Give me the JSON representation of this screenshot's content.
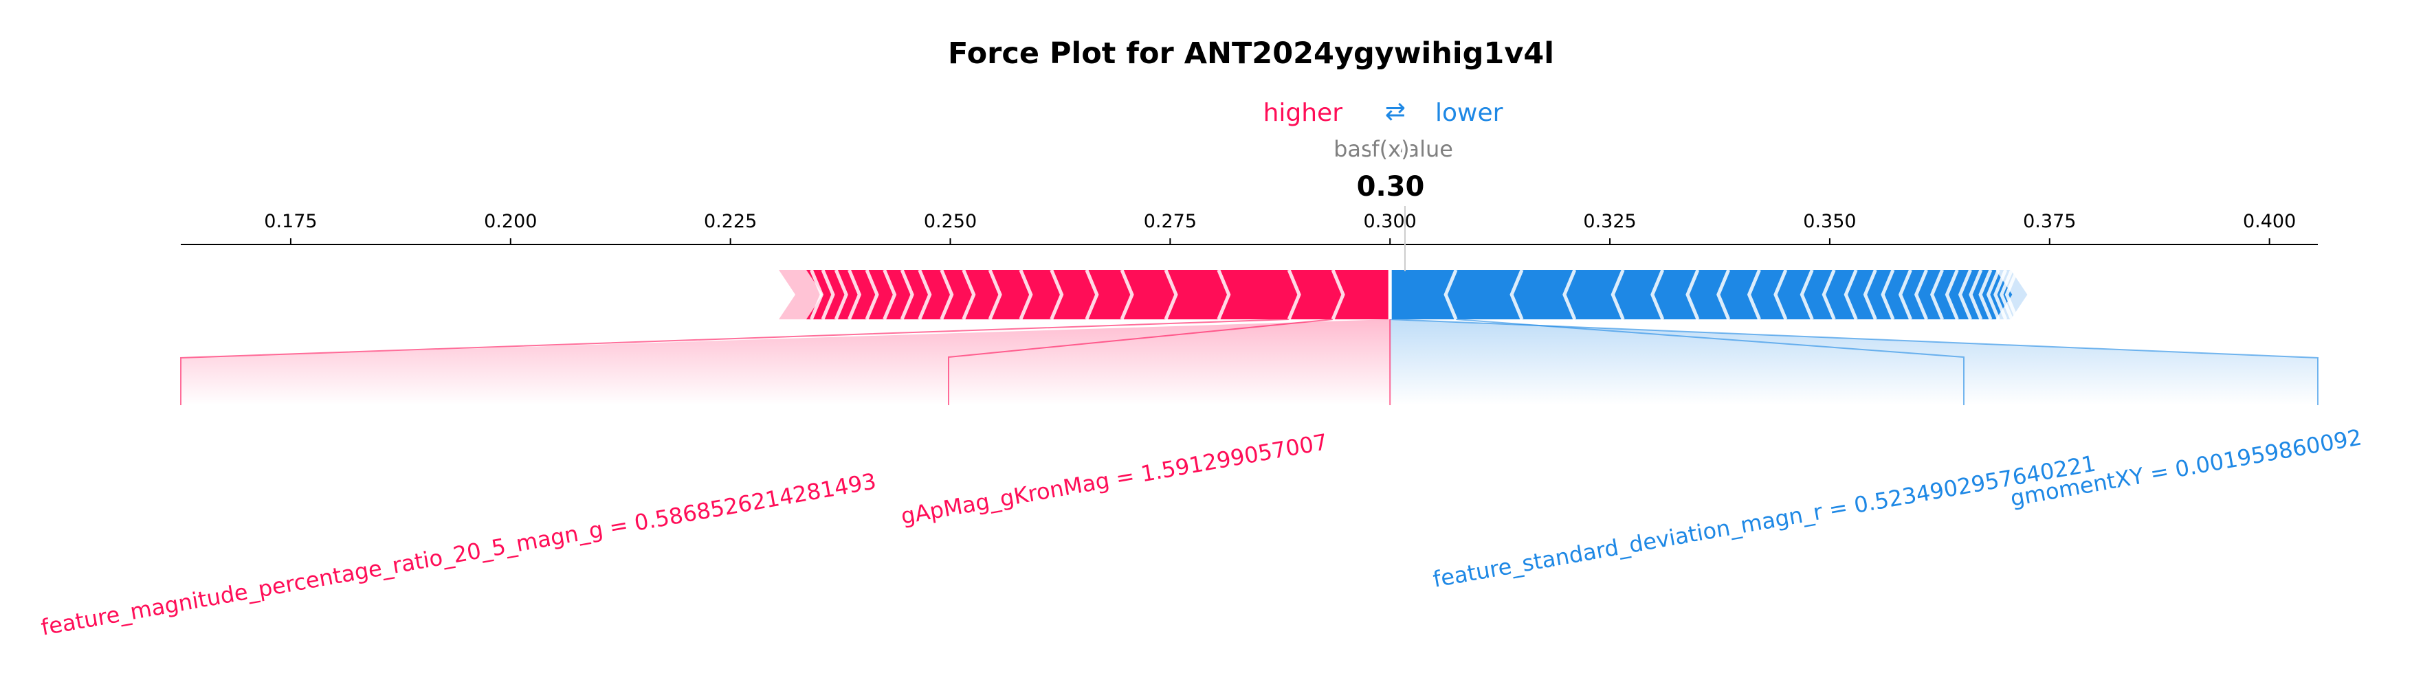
{
  "chart_data": {
    "type": "force",
    "title": "Force Plot for ANT2024ygywihig1v4l",
    "legend": {
      "higher": "higher",
      "lower": "lower",
      "arrow": "⇄"
    },
    "base_value_label": "base value",
    "fx_label": "f(x)",
    "fx_value": 0.3,
    "fx_value_text": "0.30",
    "base_value": 0.3017,
    "xlim": [
      0.1625,
      0.4055
    ],
    "ticks": [
      0.175,
      0.2,
      0.225,
      0.25,
      0.275,
      0.3,
      0.325,
      0.35,
      0.375,
      0.4
    ],
    "tick_labels": [
      "0.175",
      "0.200",
      "0.225",
      "0.250",
      "0.275",
      "0.300",
      "0.325",
      "0.350",
      "0.375",
      "0.400"
    ],
    "positive_range": [
      0.2305,
      0.3
    ],
    "negative_range": [
      0.3,
      0.372
    ],
    "positive_boundaries": [
      0.2935,
      0.2885,
      0.2805,
      0.2745,
      0.2695,
      0.2655,
      0.2615,
      0.258,
      0.2545,
      0.2515,
      0.249,
      0.2465,
      0.2445,
      0.2425,
      0.2405,
      0.2385,
      0.237,
      0.2355,
      0.2342
    ],
    "negative_boundaries": [
      0.3075,
      0.315,
      0.321,
      0.3265,
      0.331,
      0.335,
      0.3385,
      0.342,
      0.345,
      0.348,
      0.3505,
      0.353,
      0.3552,
      0.3572,
      0.3592,
      0.361,
      0.3628,
      0.3645,
      0.366,
      0.3672,
      0.3683,
      0.3692,
      0.37,
      0.3707,
      0.3713
    ],
    "positive_features": [
      {
        "label": "feature_magnitude_percentage_ratio_20_5_magn_g = 0.5868526214281493",
        "start": 0.2935,
        "end": 0.2885
      },
      {
        "label": "gApMag_gKronMag = 1.591299057007",
        "start": 0.2945,
        "end": 0.2935
      }
    ],
    "negative_features": [
      {
        "label": "feature_standard_deviation_magn_r = 0.5234902957640221",
        "start": 0.3075,
        "end": 0.315
      },
      {
        "label": "gmomentXY = 0.001959860092",
        "start": 0.3,
        "end": 0.3075
      }
    ],
    "colors": {
      "positive": "#ff0d57",
      "negative": "#1e88e5",
      "positive_light": "#ffc3d5",
      "negative_light": "#d1e6fa"
    }
  }
}
